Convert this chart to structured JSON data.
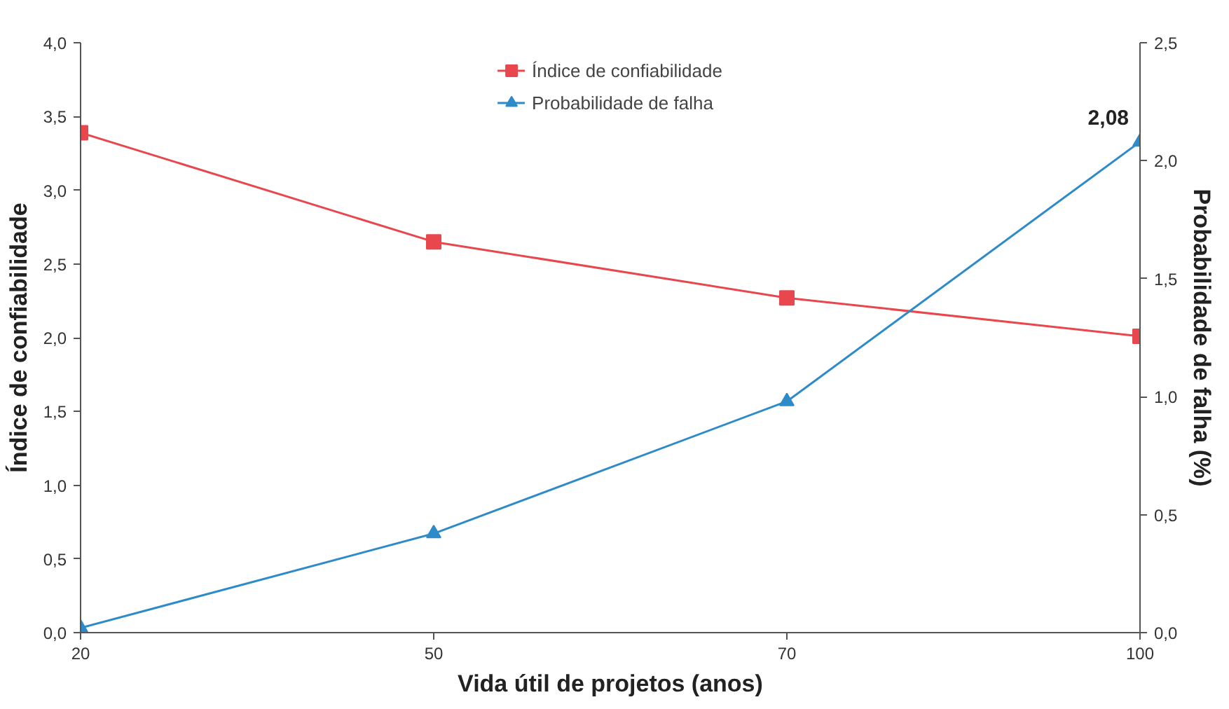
{
  "chart_data": {
    "type": "line",
    "xlabel": "Vida útil de projetos (anos)",
    "ylabel": "Índice de confiabilidade",
    "y2label": "Probabilidade de falha (%)",
    "categories": [
      "20",
      "50",
      "70",
      "100"
    ],
    "series": [
      {
        "name": "Índice de confiabilidade",
        "color": "#e8474e",
        "marker": "square",
        "values": [
          3.39,
          2.65,
          2.27,
          2.01
        ]
      },
      {
        "name": "Probabilidade de falha",
        "color": "#2e8bc9",
        "marker": "triangle",
        "axis": "y2",
        "values": [
          0.02,
          0.42,
          0.98,
          2.08
        ],
        "value_labels": [
          null,
          null,
          null,
          "2,08"
        ]
      }
    ],
    "ylim": [
      0,
      4
    ],
    "yticks": [
      {
        "value": 0,
        "label": "0,0"
      },
      {
        "value": 0.5,
        "label": "0,5"
      },
      {
        "value": 1,
        "label": "1,0"
      },
      {
        "value": 1.5,
        "label": "1,5"
      },
      {
        "value": 2,
        "label": "2,0"
      },
      {
        "value": 2.5,
        "label": "2,5"
      },
      {
        "value": 3,
        "label": "3,0"
      },
      {
        "value": 3.5,
        "label": "3,5"
      },
      {
        "value": 4,
        "label": "4,0"
      }
    ],
    "y2lim": [
      0,
      2.5
    ],
    "y2ticks": [
      {
        "value": 0,
        "label": "0,0"
      },
      {
        "value": 0.5,
        "label": "0,5"
      },
      {
        "value": 1,
        "label": "1,0"
      },
      {
        "value": 1.5,
        "label": "1,5"
      },
      {
        "value": 2,
        "label": "2,0"
      },
      {
        "value": 2.5,
        "label": "2,5"
      }
    ],
    "grid": false,
    "legend": "top",
    "line_style": "solid"
  }
}
